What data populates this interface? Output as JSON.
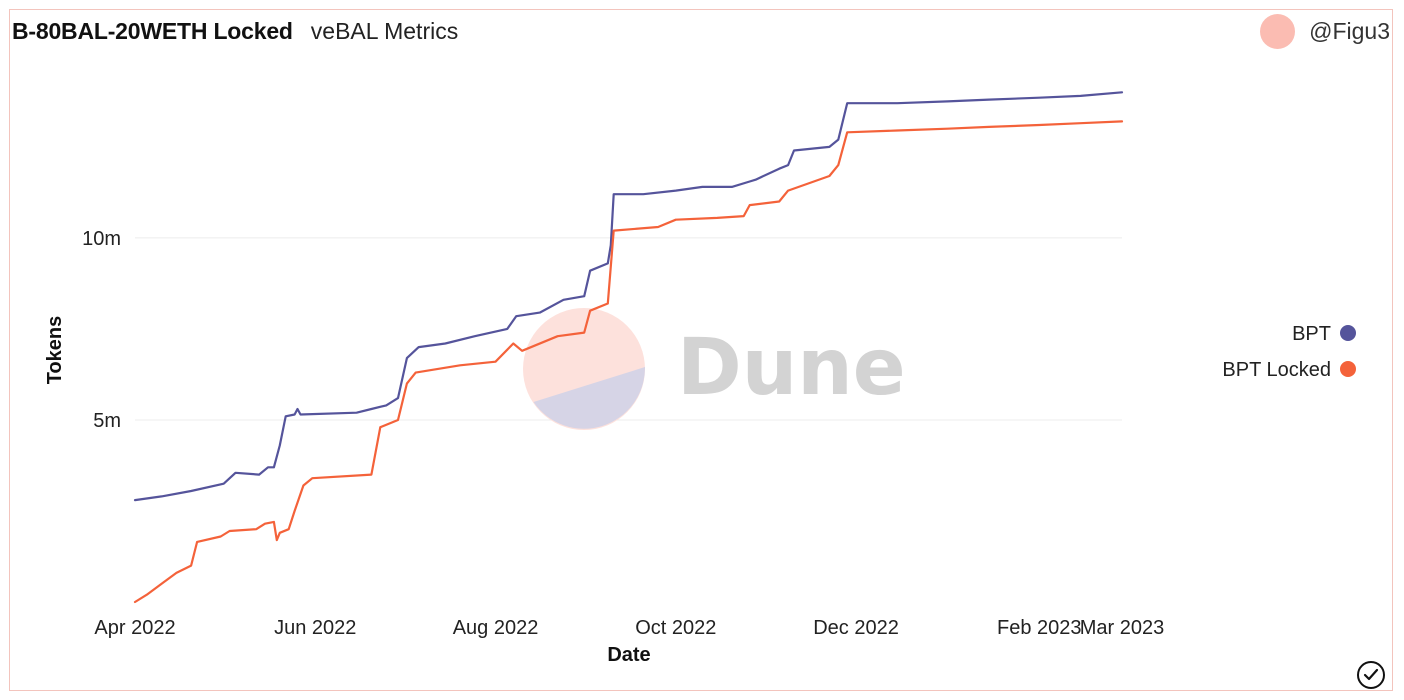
{
  "header": {
    "title": "B-80BAL-20WETH Locked",
    "subtitle": "veBAL Metrics"
  },
  "author": {
    "name": "@Figu3"
  },
  "watermark": {
    "text": "Dune"
  },
  "colors": {
    "bpt": "#55549b",
    "bpt_locked": "#f4623a",
    "avatar": "#fbbcb2"
  },
  "chart_data": {
    "type": "line",
    "title": "B-80BAL-20WETH Locked",
    "xlabel": "Date",
    "ylabel": "Tokens",
    "x_ticks": [
      "Apr 2022",
      "Jun 2022",
      "Aug 2022",
      "Oct 2022",
      "Dec 2022",
      "Feb 2023",
      "Mar 2023"
    ],
    "y_ticks": [
      "5m",
      "10m"
    ],
    "ylim": [
      0,
      14200000
    ],
    "xlim": [
      "2022-04-01",
      "2023-03-01"
    ],
    "grid": true,
    "legend_position": "right",
    "series": [
      {
        "name": "BPT",
        "color": "#55549b",
        "points": [
          [
            "2022-04-01",
            2800000
          ],
          [
            "2022-04-10",
            2900000
          ],
          [
            "2022-04-20",
            3050000
          ],
          [
            "2022-05-01",
            3250000
          ],
          [
            "2022-05-05",
            3550000
          ],
          [
            "2022-05-13",
            3500000
          ],
          [
            "2022-05-16",
            3700000
          ],
          [
            "2022-05-18",
            3700000
          ],
          [
            "2022-05-20",
            4300000
          ],
          [
            "2022-05-22",
            5100000
          ],
          [
            "2022-05-25",
            5150000
          ],
          [
            "2022-05-26",
            5300000
          ],
          [
            "2022-05-27",
            5150000
          ],
          [
            "2022-06-15",
            5200000
          ],
          [
            "2022-06-20",
            5300000
          ],
          [
            "2022-06-25",
            5400000
          ],
          [
            "2022-06-29",
            5600000
          ],
          [
            "2022-07-02",
            6700000
          ],
          [
            "2022-07-06",
            7000000
          ],
          [
            "2022-07-15",
            7100000
          ],
          [
            "2022-07-25",
            7300000
          ],
          [
            "2022-08-05",
            7500000
          ],
          [
            "2022-08-08",
            7850000
          ],
          [
            "2022-08-16",
            7950000
          ],
          [
            "2022-08-24",
            8300000
          ],
          [
            "2022-08-31",
            8400000
          ],
          [
            "2022-09-02",
            9100000
          ],
          [
            "2022-09-08",
            9300000
          ],
          [
            "2022-09-09",
            9800000
          ],
          [
            "2022-09-10",
            11200000
          ],
          [
            "2022-09-20",
            11200000
          ],
          [
            "2022-10-01",
            11300000
          ],
          [
            "2022-10-10",
            11400000
          ],
          [
            "2022-10-20",
            11400000
          ],
          [
            "2022-10-26",
            11550000
          ],
          [
            "2022-10-28",
            11600000
          ],
          [
            "2022-11-05",
            11900000
          ],
          [
            "2022-11-08",
            12000000
          ],
          [
            "2022-11-10",
            12400000
          ],
          [
            "2022-11-22",
            12500000
          ],
          [
            "2022-11-25",
            12700000
          ],
          [
            "2022-11-28",
            13700000
          ],
          [
            "2022-12-15",
            13700000
          ],
          [
            "2023-01-01",
            13750000
          ],
          [
            "2023-01-15",
            13800000
          ],
          [
            "2023-02-01",
            13850000
          ],
          [
            "2023-02-15",
            13900000
          ],
          [
            "2023-03-01",
            14000000
          ]
        ]
      },
      {
        "name": "BPT Locked",
        "color": "#f4623a",
        "points": [
          [
            "2022-04-01",
            0
          ],
          [
            "2022-04-05",
            200000
          ],
          [
            "2022-04-10",
            500000
          ],
          [
            "2022-04-15",
            800000
          ],
          [
            "2022-04-20",
            1000000
          ],
          [
            "2022-04-22",
            1650000
          ],
          [
            "2022-04-30",
            1800000
          ],
          [
            "2022-05-03",
            1950000
          ],
          [
            "2022-05-12",
            2000000
          ],
          [
            "2022-05-15",
            2150000
          ],
          [
            "2022-05-18",
            2200000
          ],
          [
            "2022-05-19",
            1700000
          ],
          [
            "2022-05-20",
            1900000
          ],
          [
            "2022-05-23",
            2000000
          ],
          [
            "2022-05-25",
            2500000
          ],
          [
            "2022-05-28",
            3200000
          ],
          [
            "2022-05-31",
            3400000
          ],
          [
            "2022-06-20",
            3500000
          ],
          [
            "2022-06-23",
            4800000
          ],
          [
            "2022-06-29",
            5000000
          ],
          [
            "2022-07-02",
            6000000
          ],
          [
            "2022-07-05",
            6300000
          ],
          [
            "2022-07-20",
            6500000
          ],
          [
            "2022-08-01",
            6600000
          ],
          [
            "2022-08-07",
            7100000
          ],
          [
            "2022-08-10",
            6900000
          ],
          [
            "2022-08-22",
            7300000
          ],
          [
            "2022-08-31",
            7400000
          ],
          [
            "2022-09-02",
            8000000
          ],
          [
            "2022-09-08",
            8200000
          ],
          [
            "2022-09-10",
            10200000
          ],
          [
            "2022-09-25",
            10300000
          ],
          [
            "2022-10-01",
            10500000
          ],
          [
            "2022-10-15",
            10550000
          ],
          [
            "2022-10-24",
            10600000
          ],
          [
            "2022-10-26",
            10900000
          ],
          [
            "2022-11-05",
            11000000
          ],
          [
            "2022-11-08",
            11300000
          ],
          [
            "2022-11-22",
            11700000
          ],
          [
            "2022-11-25",
            12000000
          ],
          [
            "2022-11-28",
            12900000
          ],
          [
            "2022-12-15",
            12950000
          ],
          [
            "2023-01-01",
            13000000
          ],
          [
            "2023-01-15",
            13050000
          ],
          [
            "2023-02-01",
            13100000
          ],
          [
            "2023-02-15",
            13150000
          ],
          [
            "2023-03-01",
            13200000
          ]
        ]
      }
    ]
  }
}
